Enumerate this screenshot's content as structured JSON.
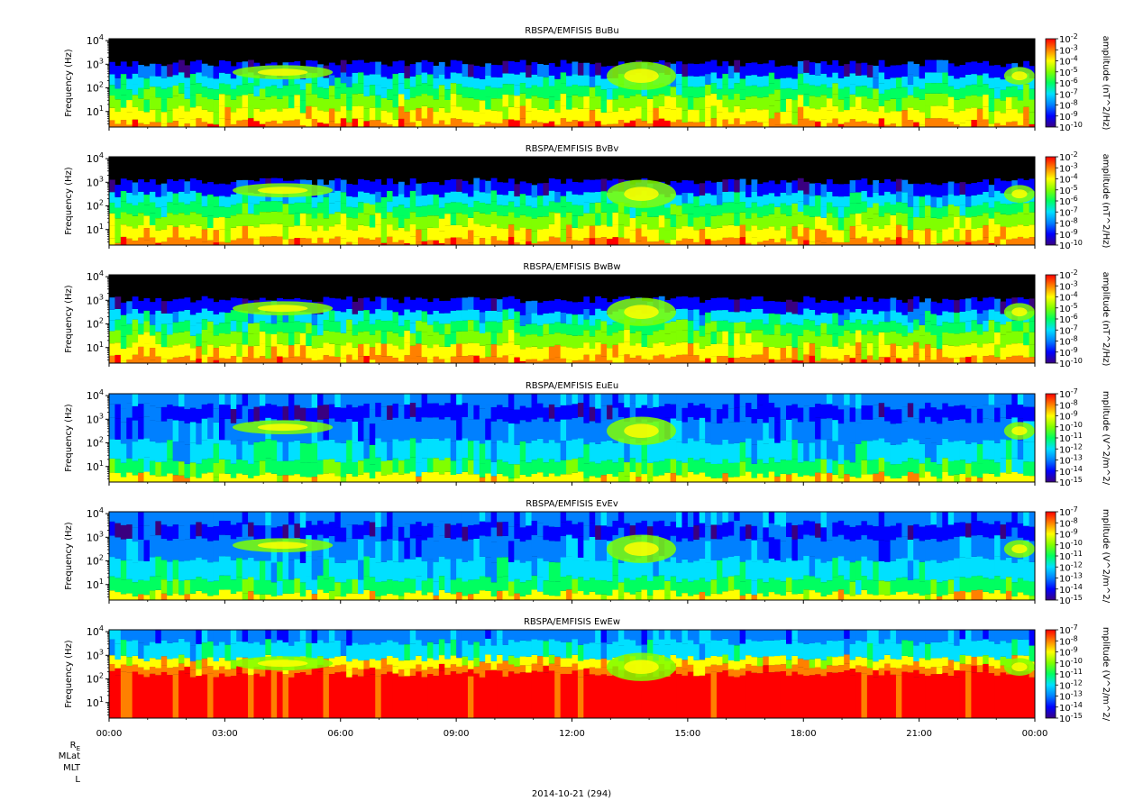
{
  "chart_data": {
    "type": "heatmap",
    "date_label": "2014-10-21 (294)",
    "x_axis": {
      "ticks": [
        "00:00",
        "03:00",
        "06:00",
        "09:00",
        "12:00",
        "15:00",
        "18:00",
        "21:00",
        "00:00"
      ],
      "tick_hours": [
        0,
        3,
        6,
        9,
        12,
        15,
        18,
        21,
        24
      ],
      "range_hours": [
        0,
        24
      ]
    },
    "ephemeris_labels": [
      "R",
      "MLat",
      "MLT",
      "L"
    ],
    "ephemeris_subscript": "E",
    "y_axis": {
      "label": "Frequency (Hz)",
      "scale": "log",
      "range_hz": [
        2.2,
        12000
      ],
      "ticks": [
        {
          "base": "10",
          "exp": "1",
          "value": 10
        },
        {
          "base": "10",
          "exp": "2",
          "value": 100
        },
        {
          "base": "10",
          "exp": "3",
          "value": 1000
        },
        {
          "base": "10",
          "exp": "4",
          "value": 10000
        }
      ]
    },
    "colormap": [
      "#3a0080",
      "#0000ff",
      "#0080ff",
      "#00e0ff",
      "#00ff60",
      "#80ff00",
      "#ffff00",
      "#ff8000",
      "#ff0000"
    ],
    "panels": [
      {
        "title": "RBSPA/EMFISIS  BuBu",
        "colorbar_label": "amplitude (nT^2/Hz)",
        "colorbar_ticks": [
          {
            "base": "10",
            "exp": "-2"
          },
          {
            "base": "10",
            "exp": "-3"
          },
          {
            "base": "10",
            "exp": "-4"
          },
          {
            "base": "10",
            "exp": "-5"
          },
          {
            "base": "10",
            "exp": "-6"
          },
          {
            "base": "10",
            "exp": "-7"
          },
          {
            "base": "10",
            "exp": "-8"
          },
          {
            "base": "10",
            "exp": "-9"
          },
          {
            "base": "10",
            "exp": "-10"
          }
        ]
      },
      {
        "title": "RBSPA/EMFISIS  BvBv",
        "colorbar_label": "amplitude (nT^2/Hz)",
        "colorbar_ticks": [
          {
            "base": "10",
            "exp": "-2"
          },
          {
            "base": "10",
            "exp": "-3"
          },
          {
            "base": "10",
            "exp": "-4"
          },
          {
            "base": "10",
            "exp": "-5"
          },
          {
            "base": "10",
            "exp": "-6"
          },
          {
            "base": "10",
            "exp": "-7"
          },
          {
            "base": "10",
            "exp": "-8"
          },
          {
            "base": "10",
            "exp": "-9"
          },
          {
            "base": "10",
            "exp": "-10"
          }
        ]
      },
      {
        "title": "RBSPA/EMFISIS  BwBw",
        "colorbar_label": "amplitude (nT^2/Hz)",
        "colorbar_ticks": [
          {
            "base": "10",
            "exp": "-2"
          },
          {
            "base": "10",
            "exp": "-3"
          },
          {
            "base": "10",
            "exp": "-4"
          },
          {
            "base": "10",
            "exp": "-5"
          },
          {
            "base": "10",
            "exp": "-6"
          },
          {
            "base": "10",
            "exp": "-7"
          },
          {
            "base": "10",
            "exp": "-8"
          },
          {
            "base": "10",
            "exp": "-9"
          },
          {
            "base": "10",
            "exp": "-10"
          }
        ]
      },
      {
        "title": "RBSPA/EMFISIS  EuEu",
        "colorbar_label": "mplitude (V^2/m^2/",
        "colorbar_ticks": [
          {
            "base": "10",
            "exp": "-7"
          },
          {
            "base": "10",
            "exp": "-8"
          },
          {
            "base": "10",
            "exp": "-9"
          },
          {
            "base": "10",
            "exp": "-10"
          },
          {
            "base": "10",
            "exp": "-11"
          },
          {
            "base": "10",
            "exp": "-12"
          },
          {
            "base": "10",
            "exp": "-13"
          },
          {
            "base": "10",
            "exp": "-14"
          },
          {
            "base": "10",
            "exp": "-15"
          }
        ]
      },
      {
        "title": "RBSPA/EMFISIS  EvEv",
        "colorbar_label": "mplitude (V^2/m^2/",
        "colorbar_ticks": [
          {
            "base": "10",
            "exp": "-7"
          },
          {
            "base": "10",
            "exp": "-8"
          },
          {
            "base": "10",
            "exp": "-9"
          },
          {
            "base": "10",
            "exp": "-10"
          },
          {
            "base": "10",
            "exp": "-11"
          },
          {
            "base": "10",
            "exp": "-12"
          },
          {
            "base": "10",
            "exp": "-13"
          },
          {
            "base": "10",
            "exp": "-14"
          },
          {
            "base": "10",
            "exp": "-15"
          }
        ]
      },
      {
        "title": "RBSPA/EMFISIS  EwEw",
        "colorbar_label": "mplitude (V^2/m^2/",
        "colorbar_ticks": [
          {
            "base": "10",
            "exp": "-7"
          },
          {
            "base": "10",
            "exp": "-8"
          },
          {
            "base": "10",
            "exp": "-9"
          },
          {
            "base": "10",
            "exp": "-10"
          },
          {
            "base": "10",
            "exp": "-11"
          },
          {
            "base": "10",
            "exp": "-12"
          },
          {
            "base": "10",
            "exp": "-13"
          },
          {
            "base": "10",
            "exp": "-14"
          },
          {
            "base": "10",
            "exp": "-15"
          }
        ]
      }
    ]
  }
}
